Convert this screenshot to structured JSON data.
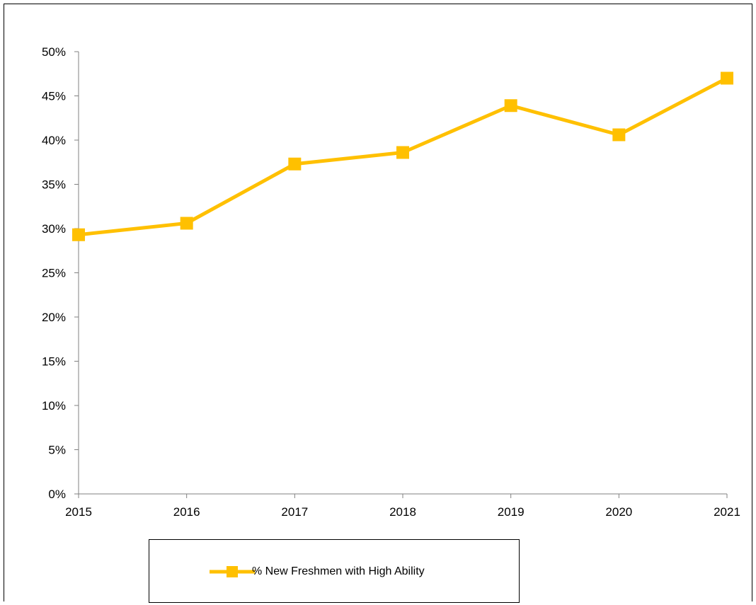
{
  "chart_data": {
    "type": "line",
    "title": "",
    "xlabel": "",
    "ylabel": "",
    "categories": [
      "2015",
      "2016",
      "2017",
      "2018",
      "2019",
      "2020",
      "2021"
    ],
    "series": [
      {
        "name": "% New Freshmen with High Ability",
        "values": [
          29.3,
          30.6,
          37.3,
          38.6,
          43.9,
          40.6,
          47.0
        ],
        "color": "#FFC000"
      }
    ],
    "ylim": [
      0,
      50
    ],
    "yticks": [
      "0%",
      "5%",
      "10%",
      "15%",
      "20%",
      "25%",
      "30%",
      "35%",
      "40%",
      "45%",
      "50%"
    ],
    "grid": false,
    "legend_position": "bottom"
  }
}
